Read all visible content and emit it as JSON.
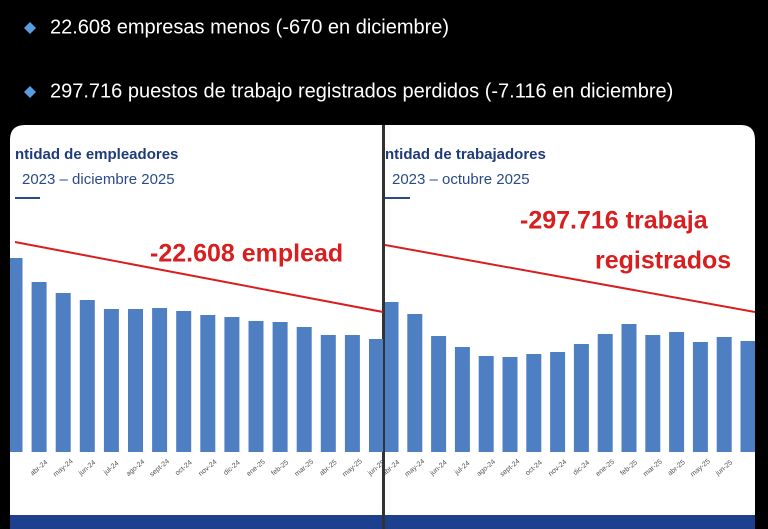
{
  "bullets": [
    "22.608 empresas menos (-670 en diciembre)",
    "297.716 puestos de trabajo registrados perdidos (-7.116 en diciembre)"
  ],
  "chart_data": [
    {
      "type": "bar",
      "title": "ntidad de empleadores",
      "subtitle": "2023 – diciembre 2025",
      "annotation": [
        "-22.608 emplead"
      ],
      "color": "#4f7fc3",
      "categories": [
        null,
        "abr-24",
        "may-24",
        "jun-24",
        "jul-24",
        "ago-24",
        "sept-24",
        "oct-24",
        "nov-24",
        "dic-24",
        "ene-25",
        "feb-25",
        "mar-25",
        "abr-25",
        "may-25",
        "jun-25"
      ],
      "values": [
        194,
        170,
        159,
        152,
        143,
        143,
        144,
        141,
        137,
        135,
        131,
        130,
        125,
        117,
        117,
        113
      ],
      "ylim": [
        0,
        200
      ]
    },
    {
      "type": "bar",
      "title": "ntidad de trabajadores",
      "subtitle": "2023 – octubre 2025",
      "annotation": [
        "-297.716 trabaja",
        "registrados"
      ],
      "color": "#4f7fc3",
      "categories": [
        "abr-24",
        "may-24",
        "jun-24",
        "jul-24",
        "ago-24",
        "sept-24",
        "oct-24",
        "nov-24",
        "dic-24",
        "ene-25",
        "feb-25",
        "mar-25",
        "abr-25",
        "may-25",
        "jun-25",
        null
      ],
      "values": [
        150,
        138,
        116,
        105,
        96,
        95,
        98,
        100,
        108,
        118,
        128,
        117,
        120,
        110,
        115,
        111
      ],
      "ylim": [
        0,
        200
      ]
    }
  ]
}
